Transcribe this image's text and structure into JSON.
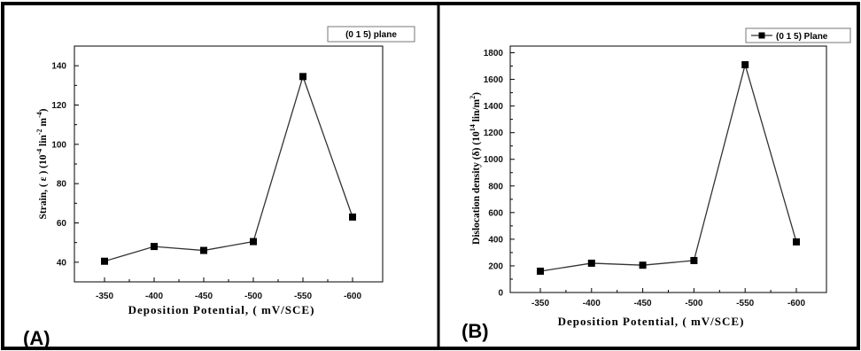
{
  "chart_data": [
    {
      "type": "line",
      "panel_label": "(A)",
      "categories": [
        "-350",
        "-400",
        "-450",
        "-500",
        "-550",
        "-600"
      ],
      "series": [
        {
          "name": "(0 1 5) plane",
          "values": [
            40.5,
            48,
            46,
            50.5,
            134.5,
            63
          ]
        }
      ],
      "xlabel": "Deposition Potential, ( mV/SCE)",
      "ylabel_main": "Strain, ( ε )  (10",
      "ylabel_exp1": "-4",
      "ylabel_mid": " lin",
      "ylabel_exp2": "-2",
      "ylabel_mid2": " m",
      "ylabel_exp3": "-4",
      "ylabel_end": ")",
      "ylim": [
        30,
        150
      ],
      "yticks": [
        40,
        60,
        80,
        100,
        120,
        140
      ],
      "legend": "top-right",
      "grid": false,
      "line_color": "#333333",
      "marker_color": "#000000"
    },
    {
      "type": "line",
      "panel_label": "(B)",
      "categories": [
        "-350",
        "-400",
        "-450",
        "-500",
        "-550",
        "-600"
      ],
      "series": [
        {
          "name": "(0 1 5) Plane",
          "values": [
            160,
            220,
            205,
            240,
            1710,
            380
          ]
        }
      ],
      "xlabel": "Deposition Potential, ( mV/SCE)",
      "ylabel_main": "Dislocation density (δ) (10",
      "ylabel_exp1": "14",
      "ylabel_mid": " lin/m",
      "ylabel_exp2": "2",
      "ylabel_end": ")",
      "ylim": [
        0,
        1850
      ],
      "yticks": [
        0,
        200,
        400,
        600,
        800,
        1000,
        1200,
        1400,
        1600,
        1800
      ],
      "legend": "top-right",
      "grid": false,
      "line_color": "#333333",
      "marker_color": "#000000"
    }
  ]
}
